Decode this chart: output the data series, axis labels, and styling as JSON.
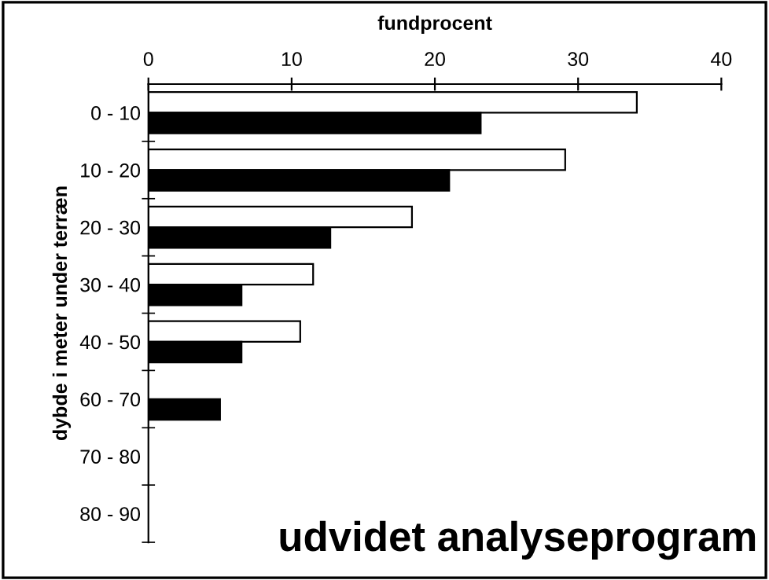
{
  "chart_data": {
    "type": "bar",
    "orientation": "horizontal",
    "xlabel": "fundprocent",
    "ylabel": "dybde i meter under terræn",
    "categories": [
      "0 - 10",
      "10 - 20",
      "20 - 30",
      "30 - 40",
      "40 - 50",
      "60 - 70",
      "70 - 80",
      "80 - 90"
    ],
    "series": [
      {
        "color": "#ffffff",
        "values": [
          34.1,
          29.1,
          18.4,
          11.5,
          10.6,
          null,
          null,
          null
        ]
      },
      {
        "color": "#000000",
        "values": [
          23.2,
          21.0,
          12.7,
          6.5,
          6.5,
          5.0,
          null,
          null
        ]
      }
    ],
    "xlim": [
      0,
      40
    ],
    "xticks": [
      0,
      10,
      20,
      30,
      40
    ],
    "grid": false,
    "legend": false,
    "annotations": [
      "udvidet analyseprogram"
    ]
  }
}
